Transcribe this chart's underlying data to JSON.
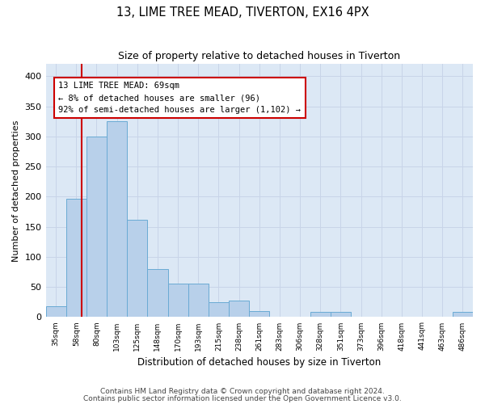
{
  "title": "13, LIME TREE MEAD, TIVERTON, EX16 4PX",
  "subtitle": "Size of property relative to detached houses in Tiverton",
  "xlabel": "Distribution of detached houses by size in Tiverton",
  "ylabel": "Number of detached properties",
  "bins": [
    "35sqm",
    "58sqm",
    "80sqm",
    "103sqm",
    "125sqm",
    "148sqm",
    "170sqm",
    "193sqm",
    "215sqm",
    "238sqm",
    "261sqm",
    "283sqm",
    "306sqm",
    "328sqm",
    "351sqm",
    "373sqm",
    "396sqm",
    "418sqm",
    "441sqm",
    "463sqm",
    "486sqm"
  ],
  "bar_values": [
    18,
    196,
    300,
    325,
    162,
    80,
    55,
    55,
    25,
    27,
    10,
    0,
    0,
    8,
    8,
    0,
    0,
    0,
    0,
    0,
    8
  ],
  "bar_color": "#b8d0ea",
  "bar_edge_color": "#6aaad4",
  "grid_color": "#c8d4e8",
  "background_color": "#dce8f5",
  "property_line_color": "#cc0000",
  "annotation_text": "13 LIME TREE MEAD: 69sqm\n← 8% of detached houses are smaller (96)\n92% of semi-detached houses are larger (1,102) →",
  "annotation_box_color": "#cc0000",
  "ylim": [
    0,
    420
  ],
  "yticks": [
    0,
    50,
    100,
    150,
    200,
    250,
    300,
    350,
    400
  ],
  "footnote1": "Contains HM Land Registry data © Crown copyright and database right 2024.",
  "footnote2": "Contains public sector information licensed under the Open Government Licence v3.0."
}
